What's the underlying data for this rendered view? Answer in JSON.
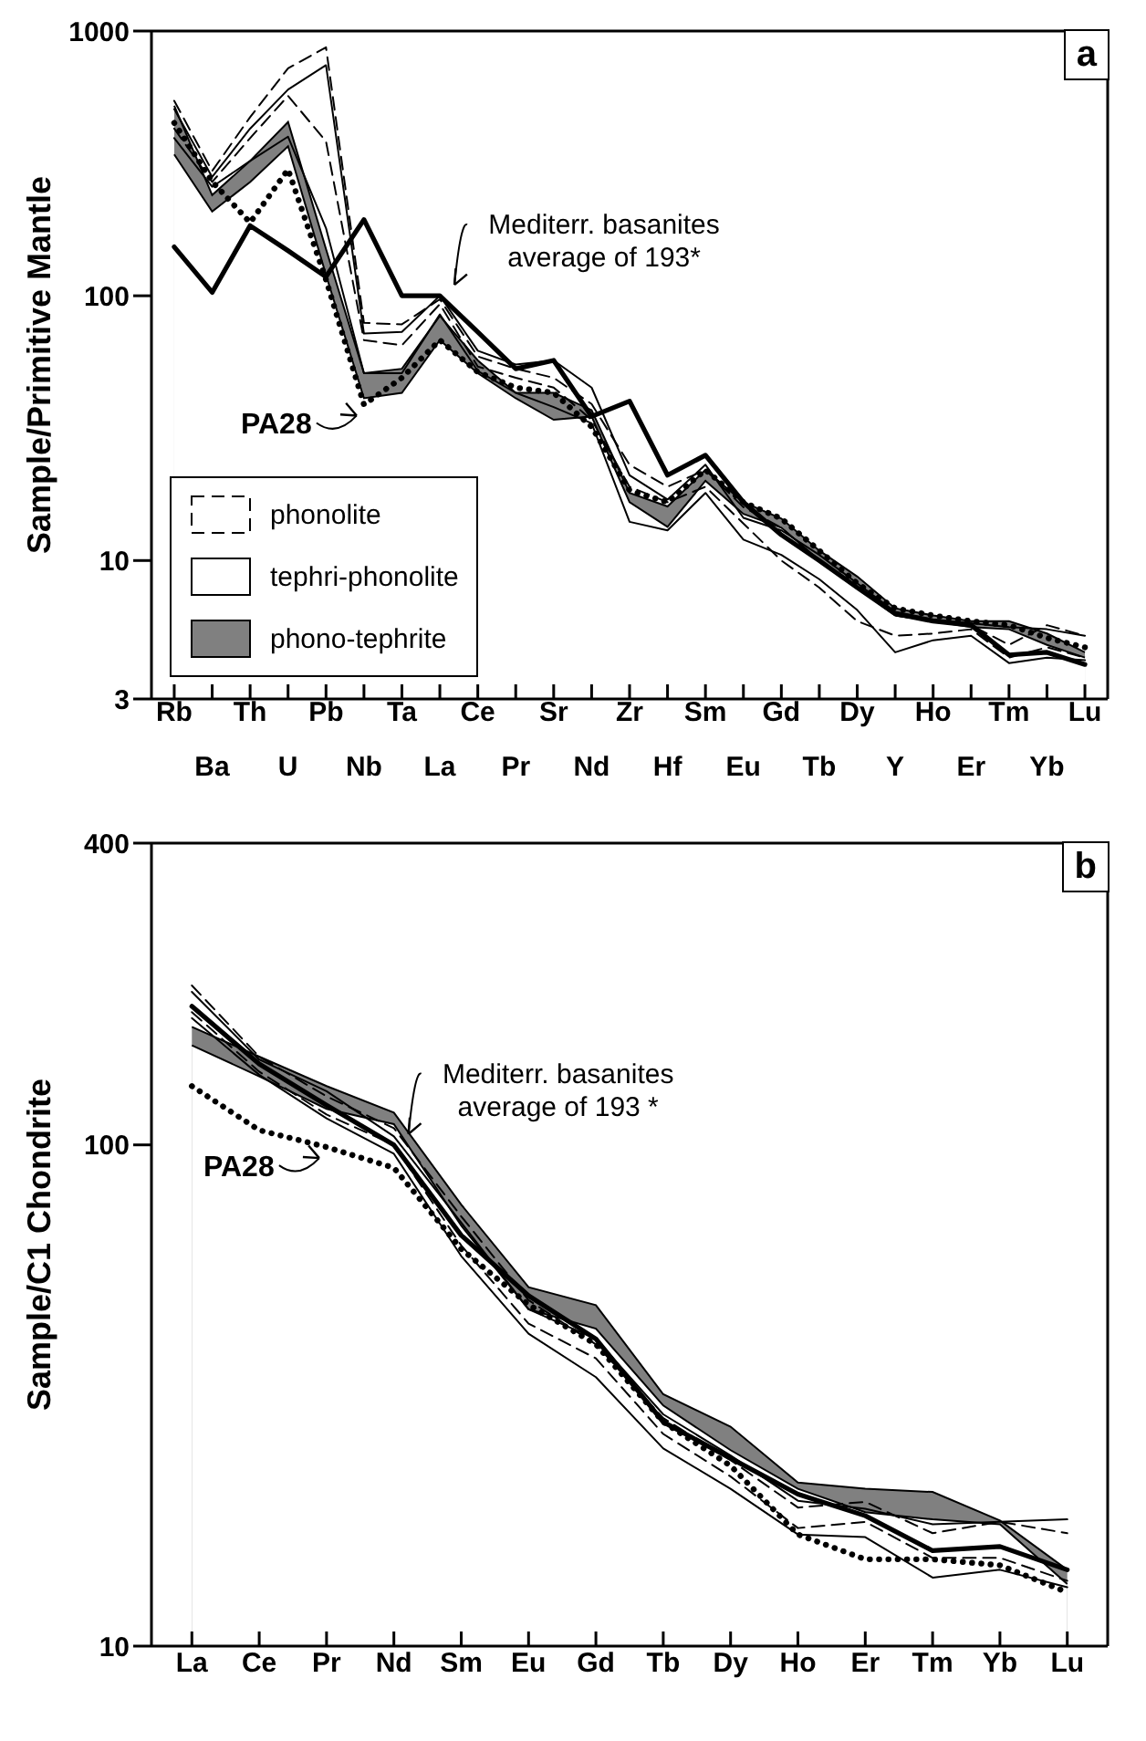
{
  "chart_data": [
    {
      "type": "line",
      "categories": [
        "Rb",
        "Ba",
        "Th",
        "U",
        "Pb",
        "Nb",
        "Ta",
        "La",
        "Ce",
        "Pr",
        "Sr",
        "Nd",
        "Zr",
        "Hf",
        "Sm",
        "Eu",
        "Gd",
        "Tb",
        "Dy",
        "Y",
        "Ho",
        "Er",
        "Tm",
        "Yb",
        "Lu"
      ],
      "ylabel": "Sample/Primitive Mantle",
      "log": true,
      "ylim": [
        3,
        1000
      ],
      "yticks": [
        3,
        10,
        100,
        1000
      ],
      "legend": "bottom left",
      "annotations": [
        "a"
      ],
      "series": [
        {
          "name": "phonolite",
          "type": "line",
          "line_style": "dashed",
          "color": "#000000",
          "values": [
            545,
            296,
            473,
            723,
            868,
            79,
            78,
            97,
            59,
            53,
            49,
            39,
            23,
            19,
            22,
            15.9,
            13.3,
            10,
            7.9,
            6.2,
            5.9,
            5.7,
            4.8,
            5.7,
            5.2
          ]
        },
        {
          "type": "line",
          "line_style": "dashed",
          "color": "#000000",
          "values": [
            428,
            269,
            394,
            569,
            383,
            68,
            65,
            93,
            54,
            49,
            45,
            34,
            19,
            16.6,
            19,
            13.8,
            10,
            7.9,
            5.9,
            5.2,
            5.3,
            5.5,
            4.3,
            4.7,
            4.3
          ]
        },
        {
          "name": "tephri-phonolite",
          "type": "line",
          "line_style": "solid",
          "color": "#000000",
          "values": [
            507,
            281,
            428,
            601,
            743,
            72,
            73,
            100,
            62,
            55,
            57,
            45,
            21,
            17,
            23,
            14.5,
            13,
            10.5,
            8.2,
            6.4,
            6,
            5.8,
            5.6,
            5.5,
            5.2
          ]
        },
        {
          "type": "line",
          "line_style": "solid",
          "color": "#000000",
          "values": [
            394,
            258,
            323,
            399,
            180,
            51,
            51,
            85,
            52,
            43,
            38,
            33,
            14,
            13,
            18,
            12,
            10.5,
            8.5,
            6.5,
            4.5,
            5,
            5.2,
            4.1,
            4.3,
            4.2
          ]
        },
        {
          "name": "phono-tephrite",
          "type": "area",
          "color": "#808080",
          "values": [
            522,
            240,
            323,
            453,
            150,
            51,
            53,
            84,
            57,
            43,
            43,
            37,
            18,
            16,
            22,
            16.6,
            14.4,
            10.9,
            8.7,
            6.6,
            6.2,
            5.9,
            5.9,
            5.3,
            4.5
          ]
        },
        {
          "type": "area",
          "color": "#ffffff",
          "values": [
            342,
            208,
            269,
            367,
            120,
            41,
            43,
            68,
            51,
            41,
            34,
            35,
            16.6,
            13.4,
            20,
            15,
            13.3,
            10,
            7.9,
            6.2,
            5.9,
            5.6,
            5.5,
            4.8,
            4.3
          ]
        },
        {
          "name": "Mediterr. basanites average of 193*",
          "type": "line",
          "line_style": "solid",
          "color": "#000000",
          "values": [
            153,
            103,
            184,
            148,
            118,
            194,
            100,
            100,
            73,
            53,
            57,
            35,
            40,
            21,
            25,
            16.6,
            12.5,
            10,
            7.9,
            6.3,
            5.9,
            5.7,
            4.4,
            4.5,
            4.05
          ]
        },
        {
          "name": "PA28",
          "type": "line",
          "line_style": "dotted",
          "color": "#000000",
          "values": [
            450,
            270,
            189,
            300,
            115,
            38.8,
            49,
            68,
            51.5,
            45,
            43,
            32,
            18.4,
            16.6,
            22,
            16.6,
            14.4,
            10.9,
            8.2,
            6.6,
            6.2,
            5.9,
            5.7,
            5.1,
            4.7
          ]
        }
      ]
    },
    {
      "type": "line",
      "categories": [
        "La",
        "Ce",
        "Pr",
        "Nd",
        "Sm",
        "Eu",
        "Gd",
        "Tb",
        "Dy",
        "Ho",
        "Er",
        "Tm",
        "Yb",
        "Lu"
      ],
      "ylabel": "Sample/C1 Chondrite",
      "log": true,
      "ylim": [
        10,
        400
      ],
      "yticks": [
        10,
        100,
        400
      ],
      "annotations": [
        "b"
      ],
      "series": [
        {
          "type": "line",
          "line_style": "dashed",
          "color": "#000000",
          "values": [
            208,
            150,
            125,
            108,
            72,
            49,
            40,
            28.5,
            23.5,
            18.9,
            19.4,
            16.8,
            17.7,
            16.8
          ]
        },
        {
          "type": "line",
          "line_style": "dashed",
          "color": "#000000",
          "values": [
            184,
            140,
            115,
            100,
            63,
            44,
            37.5,
            26.5,
            21.8,
            17.2,
            17.7,
            15,
            15,
            13.5
          ]
        },
        {
          "type": "line",
          "line_style": "solid",
          "color": "#000000",
          "values": [
            202,
            148,
            128,
            104,
            70,
            47,
            41,
            29,
            24,
            19.5,
            18.8,
            17.5,
            17.7,
            17.9
          ]
        },
        {
          "type": "line",
          "line_style": "solid",
          "color": "#000000",
          "values": [
            179,
            138,
            113,
            96,
            60,
            42,
            34.4,
            24.8,
            20.6,
            16.7,
            16.5,
            13.7,
            14.2,
            13.1
          ]
        },
        {
          "type": "area",
          "color": "#808080",
          "values": [
            172,
            150,
            131,
            116,
            76,
            52,
            47.9,
            31.8,
            27.4,
            21.2,
            20.6,
            20.3,
            17.8,
            14.2
          ]
        },
        {
          "type": "area",
          "color": "#ffffff",
          "values": [
            158,
            137,
            118,
            110,
            69,
            47,
            43,
            30.2,
            24.6,
            20.6,
            18.5,
            17.9,
            17.5,
            13.3
          ]
        },
        {
          "name": "Mediterr. basanites average of 193 *",
          "type": "line",
          "line_style": "solid",
          "color": "#000000",
          "values": [
            189,
            145,
            120,
            100,
            66,
            50,
            41,
            28,
            23.7,
            20.1,
            18.2,
            15.5,
            15.8,
            14.2
          ]
        },
        {
          "name": "PA28",
          "type": "line",
          "line_style": "dotted",
          "color": "#000000",
          "values": [
            131,
            107,
            99,
            90,
            62,
            48,
            40,
            28,
            22.9,
            16.7,
            14.9,
            14.9,
            14.5,
            12.8
          ]
        }
      ]
    }
  ]
}
